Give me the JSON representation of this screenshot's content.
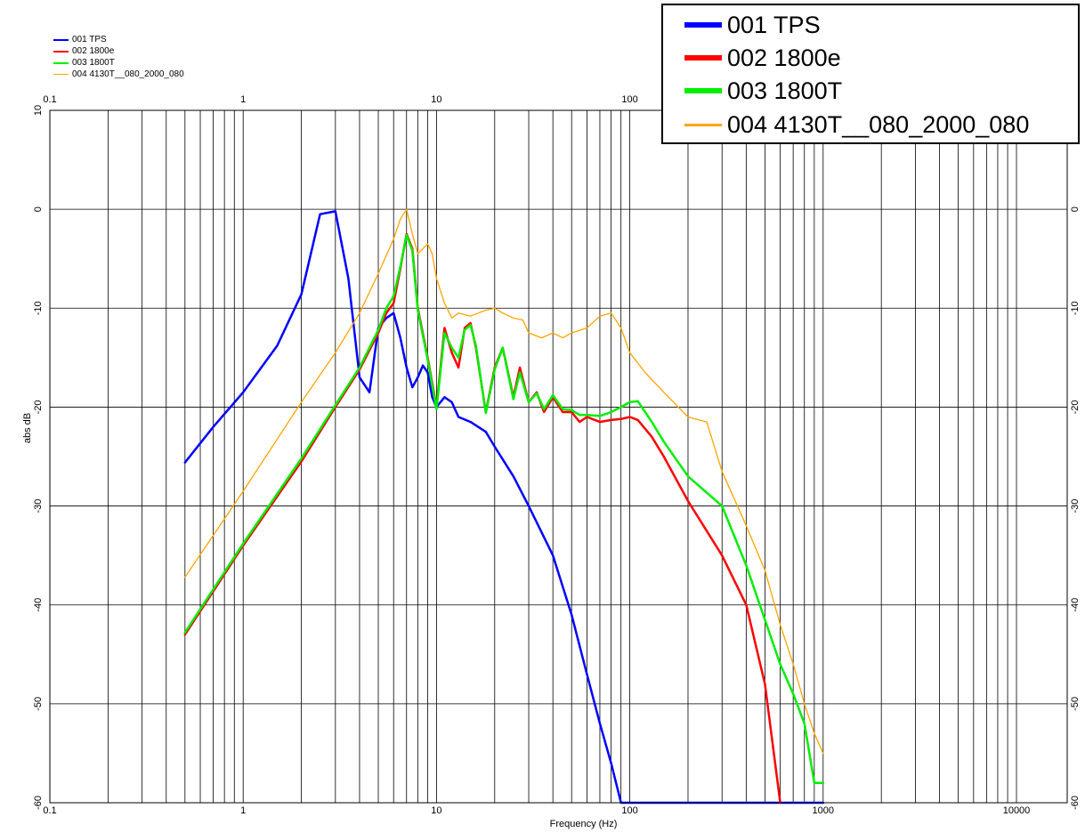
{
  "chart_data": {
    "type": "line",
    "xlabel": "Frequency (Hz)",
    "ylabel": "abs dB",
    "xscale": "log",
    "xlim": [
      0.1,
      20000
    ],
    "ylim": [
      -60,
      10
    ],
    "grid": true,
    "legend_placement": "top-right",
    "x_ticks": [
      "0.1",
      "1",
      "10",
      "100",
      "1000",
      "10000"
    ],
    "y_ticks": [
      "10",
      "0",
      "-10",
      "-20",
      "-30",
      "-40",
      "-50",
      "-60"
    ],
    "series": [
      {
        "name": "001 TPS",
        "color": "#0000ff",
        "x": [
          0.5,
          0.7,
          1.0,
          1.5,
          2.0,
          2.5,
          3.0,
          3.5,
          4.0,
          4.5,
          5.0,
          5.5,
          6.0,
          6.5,
          7.0,
          7.5,
          8.0,
          8.5,
          9.0,
          9.5,
          10,
          11,
          12,
          13,
          15,
          18,
          20,
          25,
          30,
          40,
          50,
          60,
          70,
          80,
          90,
          100,
          1000
        ],
        "y": [
          -25.6,
          -22.0,
          -18.5,
          -13.8,
          -8.6,
          -0.5,
          -0.2,
          -7.0,
          -17.0,
          -18.5,
          -12.0,
          -11.0,
          -10.5,
          -13.0,
          -16.0,
          -18.0,
          -17.0,
          -15.8,
          -16.5,
          -19.0,
          -20.0,
          -19.0,
          -19.5,
          -21.0,
          -21.5,
          -22.5,
          -24.0,
          -27.0,
          -30.0,
          -35.0,
          -41.0,
          -47.0,
          -52.0,
          -56.0,
          -60.0,
          -60.0,
          -60.0
        ]
      },
      {
        "name": "002 1800e",
        "color": "#ff0000",
        "x": [
          0.5,
          1.0,
          2.0,
          3.0,
          4.0,
          5.0,
          5.5,
          6.0,
          6.5,
          7.0,
          7.5,
          8.0,
          9.0,
          10,
          11,
          12,
          13,
          14,
          15,
          16,
          18,
          20,
          22,
          25,
          27,
          30,
          33,
          36,
          40,
          45,
          50,
          55,
          60,
          70,
          80,
          90,
          100,
          110,
          130,
          150,
          200,
          300,
          400,
          500,
          600
        ],
        "y": [
          -43.0,
          -34.0,
          -25.5,
          -20.0,
          -16.2,
          -12.5,
          -10.5,
          -9.5,
          -6.0,
          -2.5,
          -4.0,
          -10.0,
          -15.0,
          -20.0,
          -12.0,
          -14.5,
          -16.0,
          -12.0,
          -11.5,
          -14.0,
          -20.5,
          -16.0,
          -14.0,
          -19.0,
          -16.0,
          -19.5,
          -18.5,
          -20.5,
          -19.0,
          -20.5,
          -20.5,
          -21.5,
          -21.0,
          -21.5,
          -21.3,
          -21.2,
          -21.0,
          -21.3,
          -23.0,
          -25.0,
          -29.5,
          -35.0,
          -40.0,
          -48.0,
          -60.0
        ]
      },
      {
        "name": "003 1800T",
        "color": "#00ee00",
        "x": [
          0.5,
          1.0,
          2.0,
          3.0,
          4.0,
          5.0,
          5.5,
          6.0,
          6.5,
          7.0,
          7.5,
          8.0,
          9.0,
          10,
          11,
          12,
          13,
          14,
          15,
          16,
          18,
          20,
          22,
          25,
          27,
          30,
          33,
          36,
          40,
          45,
          50,
          55,
          60,
          70,
          80,
          90,
          100,
          110,
          130,
          150,
          200,
          300,
          400,
          500,
          600,
          700,
          800,
          900,
          1000
        ],
        "y": [
          -42.8,
          -33.8,
          -25.2,
          -19.8,
          -16.0,
          -12.2,
          -10.0,
          -8.8,
          -5.8,
          -2.6,
          -4.2,
          -10.2,
          -15.2,
          -20.2,
          -12.5,
          -14.0,
          -15.0,
          -12.2,
          -11.7,
          -13.8,
          -20.6,
          -16.2,
          -14.0,
          -19.2,
          -16.5,
          -19.5,
          -18.6,
          -20.2,
          -18.8,
          -20.2,
          -20.3,
          -20.8,
          -20.8,
          -20.9,
          -20.5,
          -20.0,
          -19.5,
          -19.4,
          -21.5,
          -23.5,
          -27.0,
          -30.0,
          -36.0,
          -41.5,
          -46.0,
          -49.0,
          -52.0,
          -58.0,
          -58.0
        ]
      },
      {
        "name": "004 4130T__080_2000_080",
        "color": "#ffa500",
        "x": [
          0.5,
          1.0,
          2.0,
          3.0,
          4.0,
          5.0,
          6.0,
          6.5,
          7.0,
          7.5,
          8.0,
          9.0,
          9.5,
          10,
          11,
          12,
          13,
          15,
          18,
          20,
          22,
          25,
          28,
          30,
          35,
          40,
          45,
          50,
          60,
          70,
          80,
          90,
          100,
          120,
          150,
          200,
          250,
          300,
          400,
          500,
          600,
          700,
          800,
          900,
          1000
        ],
        "y": [
          -37.2,
          -28.5,
          -19.5,
          -14.5,
          -10.5,
          -6.5,
          -3.0,
          -1.0,
          0.0,
          -2.5,
          -4.5,
          -3.5,
          -4.5,
          -7.0,
          -9.5,
          -11.0,
          -10.5,
          -10.8,
          -10.2,
          -10.0,
          -10.5,
          -11.0,
          -11.2,
          -12.5,
          -13.0,
          -12.5,
          -13.0,
          -12.5,
          -12.0,
          -10.8,
          -10.5,
          -12.0,
          -14.5,
          -16.5,
          -18.5,
          -21.0,
          -21.5,
          -26.5,
          -32.0,
          -36.5,
          -42.0,
          -46.0,
          -50.0,
          -53.0,
          -55.0
        ]
      }
    ]
  }
}
